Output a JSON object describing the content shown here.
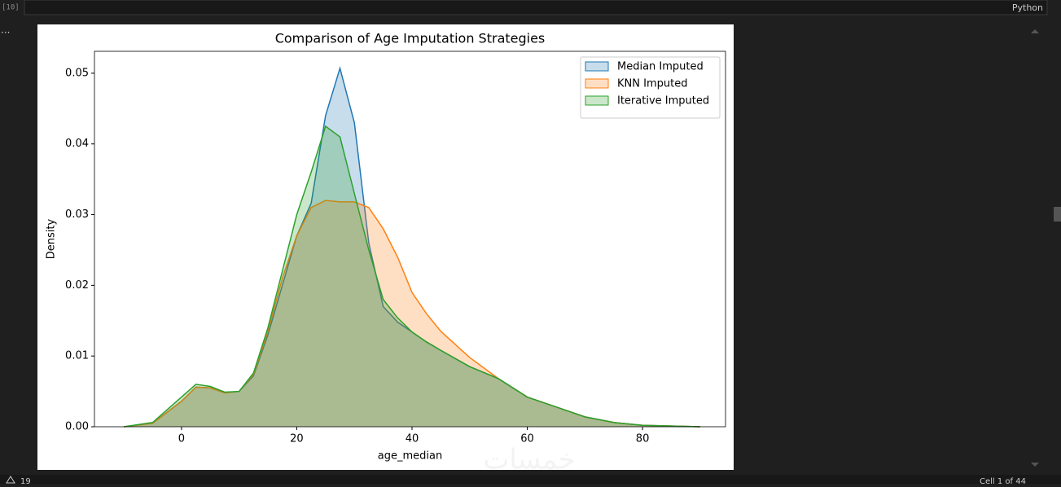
{
  "ui": {
    "cell_label": "[10]",
    "kernel": "Python",
    "menu": "...",
    "warnings": "19",
    "cell_position": "Cell 1 of 44",
    "watermark": "خمسات"
  },
  "chart_data": {
    "type": "kde",
    "title": "Comparison of Age Imputation Strategies",
    "x_label": "age_median",
    "y_label": "Density",
    "x": [
      -10,
      -5,
      0,
      2.5,
      5,
      7.5,
      10,
      12.5,
      15,
      17.5,
      20,
      22.5,
      25,
      27.5,
      30,
      32.5,
      35,
      37.5,
      40,
      42.5,
      45,
      50,
      55,
      60,
      65,
      70,
      75,
      80,
      85,
      90
    ],
    "series": [
      {
        "name": "Median Imputed",
        "color": "#1f77b4",
        "values": [
          0,
          0.0005,
          0.0036,
          0.0056,
          0.0055,
          0.0048,
          0.005,
          0.0072,
          0.013,
          0.02,
          0.027,
          0.0316,
          0.044,
          0.0507,
          0.043,
          0.026,
          0.017,
          0.0148,
          0.0134,
          0.012,
          0.0108,
          0.0085,
          0.0068,
          0.0042,
          0.0028,
          0.0014,
          0.0006,
          0.0002,
          0.0001,
          0
        ]
      },
      {
        "name": "KNN Imputed",
        "color": "#ff7f0e",
        "values": [
          0,
          0.0005,
          0.0036,
          0.0056,
          0.0055,
          0.0048,
          0.005,
          0.0074,
          0.0135,
          0.021,
          0.027,
          0.031,
          0.032,
          0.0318,
          0.0318,
          0.031,
          0.028,
          0.024,
          0.019,
          0.016,
          0.0135,
          0.0098,
          0.0068,
          0.0042,
          0.0028,
          0.0014,
          0.0006,
          0.0002,
          0.0001,
          0
        ]
      },
      {
        "name": "Iterative Imputed",
        "color": "#2ca02c",
        "values": [
          0,
          0.0006,
          0.0042,
          0.006,
          0.0057,
          0.0049,
          0.005,
          0.0076,
          0.014,
          0.022,
          0.03,
          0.036,
          0.0425,
          0.041,
          0.033,
          0.025,
          0.018,
          0.0154,
          0.0134,
          0.012,
          0.0108,
          0.0085,
          0.0068,
          0.0042,
          0.0028,
          0.0014,
          0.0006,
          0.0002,
          0.0001,
          0
        ]
      }
    ],
    "xlim": [
      -15.1,
      94.4
    ],
    "xticks": [
      0,
      20,
      40,
      60,
      80
    ],
    "ylim": [
      0,
      0.0531
    ],
    "yticks": [
      {
        "value": 0,
        "label": "0.00"
      },
      0.01,
      0.02,
      0.03,
      0.04,
      0.05
    ],
    "fill_opacity": 0.25,
    "grid": false,
    "legend": "upper right"
  }
}
